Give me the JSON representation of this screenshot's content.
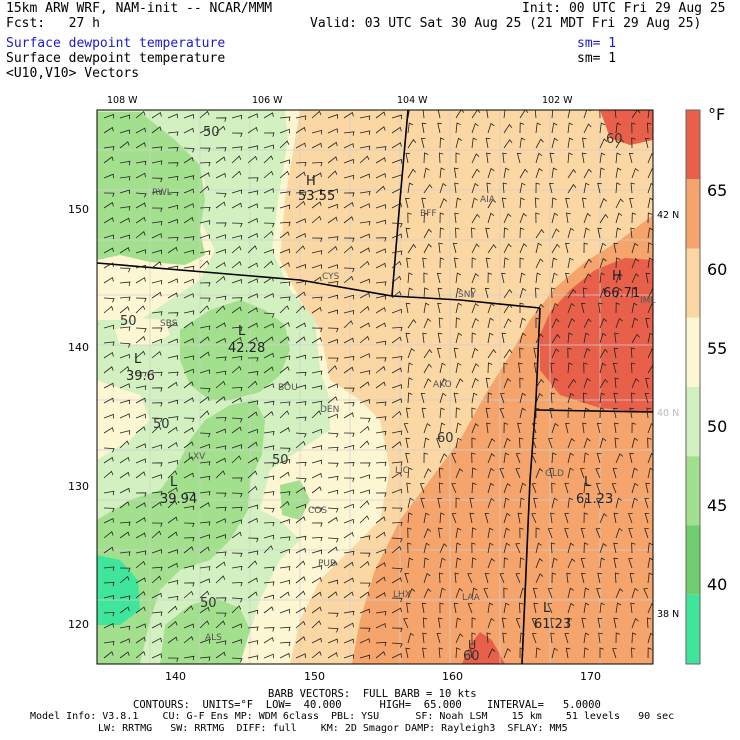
{
  "header": {
    "title": "15km ARW WRF, NAM-init -- NCAR/MMM",
    "fcst": "Fcst:   27 h",
    "init": "Init: 00 UTC Fri 29 Aug 25",
    "valid": "Valid: 03 UTC Sat 30 Aug 25 (21 MDT Fri 29 Aug 25)",
    "field1": "Surface dewpoint temperature",
    "field1_sm": "sm= 1",
    "field2": "Surface dewpoint temperature",
    "field2_sm": "sm= 1",
    "field3": "<U10,V10> Vectors",
    "colors": {
      "field1": "#1a1acc",
      "text": "#000000"
    }
  },
  "map": {
    "top_lon_labels": [
      "108 W",
      "106 W",
      "104 W",
      "102 W"
    ],
    "left_grid_labels": [
      "150",
      "140",
      "130",
      "120"
    ],
    "bottom_grid_labels": [
      "140",
      "150",
      "160",
      "170"
    ],
    "right_lat_labels": [
      "42 N",
      "40 N",
      "38 N"
    ],
    "stations": [
      "RWL",
      "BFF",
      "AIA",
      "CYS",
      "SNY",
      "IML",
      "SBS",
      "BOU",
      "DEN",
      "AKO",
      "LXV",
      "LIC",
      "GLD",
      "COS",
      "PUB",
      "LHX",
      "LAA",
      "ALS"
    ],
    "extrema": [
      {
        "label": "H",
        "value": "53.55"
      },
      {
        "label": "H",
        "value": "66.71"
      },
      {
        "label": "L",
        "value": "42.28"
      },
      {
        "label": "L",
        "value": "39.6"
      },
      {
        "label": "L",
        "value": "39.94"
      },
      {
        "label": "L",
        "value": "61.23"
      },
      {
        "label": "L",
        "value": "61.23"
      }
    ],
    "contour_labels": [
      "50",
      "50",
      "50",
      "50",
      "50",
      "50",
      "60",
      "60",
      "60"
    ],
    "extra_label": "H"
  },
  "colorbar": {
    "unit": "°F",
    "ticks": [
      "65",
      "60",
      "55",
      "50",
      "45",
      "40"
    ],
    "colors": [
      "#e8604a",
      "#f5a46b",
      "#fbd7a4",
      "#fdf6d2",
      "#d3f0c0",
      "#a3e08e",
      "#6fcf6f",
      "#3fe59a"
    ]
  },
  "footer": {
    "barb": "BARB VECTORS:  FULL BARB = 10 kts",
    "contours": "CONTOURS:  UNITS=°F  LOW=  40.000      HIGH=  65.000    INTERVAL=   5.0000",
    "model1": "Model Info: V3.8.1    CU: G-F Ens MP: WDM 6class  PBL: YSU      SF: Noah LSM    15 km    51 levels   90 sec",
    "model2": "LW: RRTMG   SW: RRTMG  DIFF: full    KM: 2D Smagor DAMP: Rayleigh3  SFLAY: MM5"
  }
}
